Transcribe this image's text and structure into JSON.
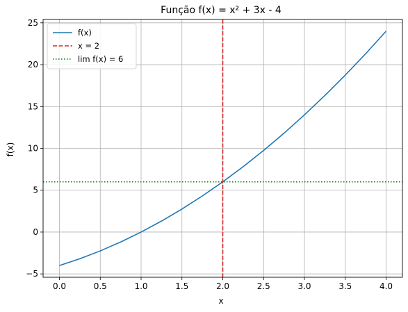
{
  "chart_data": {
    "type": "line",
    "title": "Função f(x) = x² + 3x - 4",
    "xlabel": "x",
    "ylabel": "f(x)",
    "xlim": [
      -0.2,
      4.2
    ],
    "ylim": [
      -5.4,
      25.4
    ],
    "xticks": [
      0.0,
      0.5,
      1.0,
      1.5,
      2.0,
      2.5,
      3.0,
      3.5,
      4.0
    ],
    "xtick_labels": [
      "0.0",
      "0.5",
      "1.0",
      "1.5",
      "2.0",
      "2.5",
      "3.0",
      "3.5",
      "4.0"
    ],
    "yticks": [
      -5,
      0,
      5,
      10,
      15,
      20,
      25
    ],
    "ytick_labels": [
      "−5",
      "0",
      "5",
      "10",
      "15",
      "20",
      "25"
    ],
    "grid": true,
    "legend_position": "top-left",
    "series": [
      {
        "name": "f(x)",
        "style": "solid",
        "color": "#1f77b4",
        "x": [
          0.0,
          0.25,
          0.5,
          0.75,
          1.0,
          1.25,
          1.5,
          1.75,
          2.0,
          2.25,
          2.5,
          2.75,
          3.0,
          3.25,
          3.5,
          3.75,
          4.0
        ],
        "y": [
          -4.0,
          -3.1875,
          -2.25,
          -1.1875,
          0.0,
          1.3125,
          2.75,
          4.3125,
          6.0,
          7.8125,
          9.75,
          11.8125,
          14.0,
          16.3125,
          18.75,
          21.3125,
          24.0
        ]
      }
    ],
    "reference_lines": [
      {
        "name": "x = 2",
        "orientation": "vertical",
        "value": 2,
        "style": "dashed",
        "color": "#d62728"
      },
      {
        "name": "lim f(x) = 6",
        "orientation": "horizontal",
        "value": 6,
        "style": "dotted",
        "color": "#008000"
      }
    ]
  }
}
